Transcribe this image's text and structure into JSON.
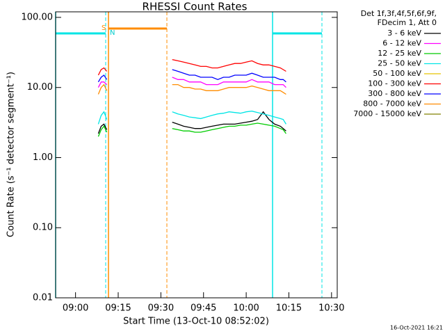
{
  "chart_data": {
    "type": "line",
    "title": "RHESSI Count Rates",
    "x_label": "Start Time (13-Oct-10 08:52:02)",
    "y_label": "Count Rate (s⁻¹ detector segment⁻¹)",
    "legend_title": [
      "Det 1f,3f,4f,5f,6f,9f,",
      "FDecim 1, Att 0"
    ],
    "legend": "outside-right",
    "annotations": [
      "S",
      "N"
    ],
    "timestamp": "16-Oct-2021 16:21",
    "log_y": true,
    "xlim": [
      "08:53",
      "10:32"
    ],
    "xticks": [
      "09:00",
      "09:15",
      "09:30",
      "09:45",
      "10:00",
      "10:15",
      "10:30"
    ],
    "ylim": [
      0.01,
      120
    ],
    "yticks": [
      {
        "value": 0.01,
        "label": "0.01"
      },
      {
        "value": 0.1,
        "label": "0.10"
      },
      {
        "value": 1,
        "label": "1.00"
      },
      {
        "value": 10,
        "label": "10.00"
      },
      {
        "value": 100,
        "label": "100.00"
      }
    ],
    "x": [
      "09:08",
      "09:09",
      "09:10",
      "09:11",
      "09:20",
      "09:34",
      "09:36",
      "09:38",
      "09:40",
      "09:42",
      "09:44",
      "09:46",
      "09:48",
      "09:50",
      "09:52",
      "09:54",
      "09:56",
      "09:58",
      "10:00",
      "10:02",
      "10:04",
      "10:06",
      "10:08",
      "10:10",
      "10:12",
      "10:13",
      "10:14"
    ],
    "series": [
      {
        "name": "3 - 6 keV",
        "color": "#000000",
        "values": [
          2.2,
          2.8,
          3,
          2.5,
          null,
          3.2,
          3,
          2.8,
          2.7,
          2.6,
          2.6,
          2.7,
          2.8,
          2.9,
          3,
          3,
          3,
          3.1,
          3.2,
          3.3,
          3.5,
          4.5,
          3.5,
          3,
          2.8,
          2.6,
          2.4
        ]
      },
      {
        "name": "6 - 12 keV",
        "color": "#ff00ff",
        "values": [
          10,
          12,
          12,
          11,
          null,
          14,
          13,
          13,
          12,
          12,
          12,
          11,
          11,
          11,
          12,
          12,
          12,
          12,
          12,
          13,
          12,
          12,
          12,
          11,
          11,
          11,
          10
        ]
      },
      {
        "name": "12 - 25 keV",
        "color": "#00cc00",
        "values": [
          2,
          2.5,
          2.8,
          2.3,
          null,
          2.6,
          2.5,
          2.4,
          2.4,
          2.3,
          2.3,
          2.4,
          2.5,
          2.6,
          2.7,
          2.8,
          2.8,
          2.9,
          2.9,
          3,
          3.1,
          3,
          2.9,
          2.8,
          2.6,
          2.5,
          2.2
        ]
      },
      {
        "name": "25 - 50 keV",
        "color": "#00e5e5",
        "values": [
          3,
          4,
          4.5,
          3.5,
          null,
          4.5,
          4.2,
          4,
          3.8,
          3.7,
          3.6,
          3.8,
          4,
          4.2,
          4.3,
          4.5,
          4.4,
          4.3,
          4.5,
          4.6,
          4.4,
          4.2,
          4,
          3.8,
          3.6,
          3.5,
          3
        ]
      },
      {
        "name": "50 - 100 keV",
        "color": "#e5c400",
        "values": [
          null,
          null,
          null,
          null,
          null,
          null,
          null,
          null,
          null,
          null,
          null,
          null,
          null,
          null,
          null,
          null,
          null,
          null,
          null,
          null,
          null,
          null,
          null,
          null,
          null,
          null,
          null
        ]
      },
      {
        "name": "100 - 300 keV",
        "color": "#ff0000",
        "values": [
          15,
          18,
          19,
          17,
          null,
          25,
          24,
          23,
          22,
          21,
          20,
          20,
          19,
          19,
          20,
          21,
          22,
          22,
          23,
          24,
          22,
          21,
          21,
          20,
          19,
          18,
          17
        ]
      },
      {
        "name": "300 - 800 keV",
        "color": "#0000ff",
        "values": [
          12,
          14,
          15,
          13,
          null,
          18,
          17,
          16,
          15,
          15,
          14,
          14,
          14,
          13,
          14,
          14,
          15,
          15,
          15,
          16,
          15,
          14,
          14,
          14,
          13,
          13,
          12
        ]
      },
      {
        "name": "800 - 7000 keV",
        "color": "#ff8c00",
        "values": [
          8,
          10,
          11,
          9,
          null,
          11,
          11,
          10,
          10,
          9.5,
          9.5,
          9,
          9,
          9,
          9.5,
          10,
          10,
          10,
          10,
          10.5,
          10,
          9.5,
          9,
          9,
          9,
          8.5,
          8
        ]
      },
      {
        "name": "7000 - 15000 keV",
        "color": "#808000",
        "values": [
          null,
          null,
          null,
          null,
          null,
          null,
          null,
          null,
          null,
          null,
          null,
          null,
          null,
          null,
          null,
          null,
          null,
          null,
          null,
          null,
          null,
          null,
          null,
          null,
          null,
          null,
          null
        ]
      }
    ]
  }
}
